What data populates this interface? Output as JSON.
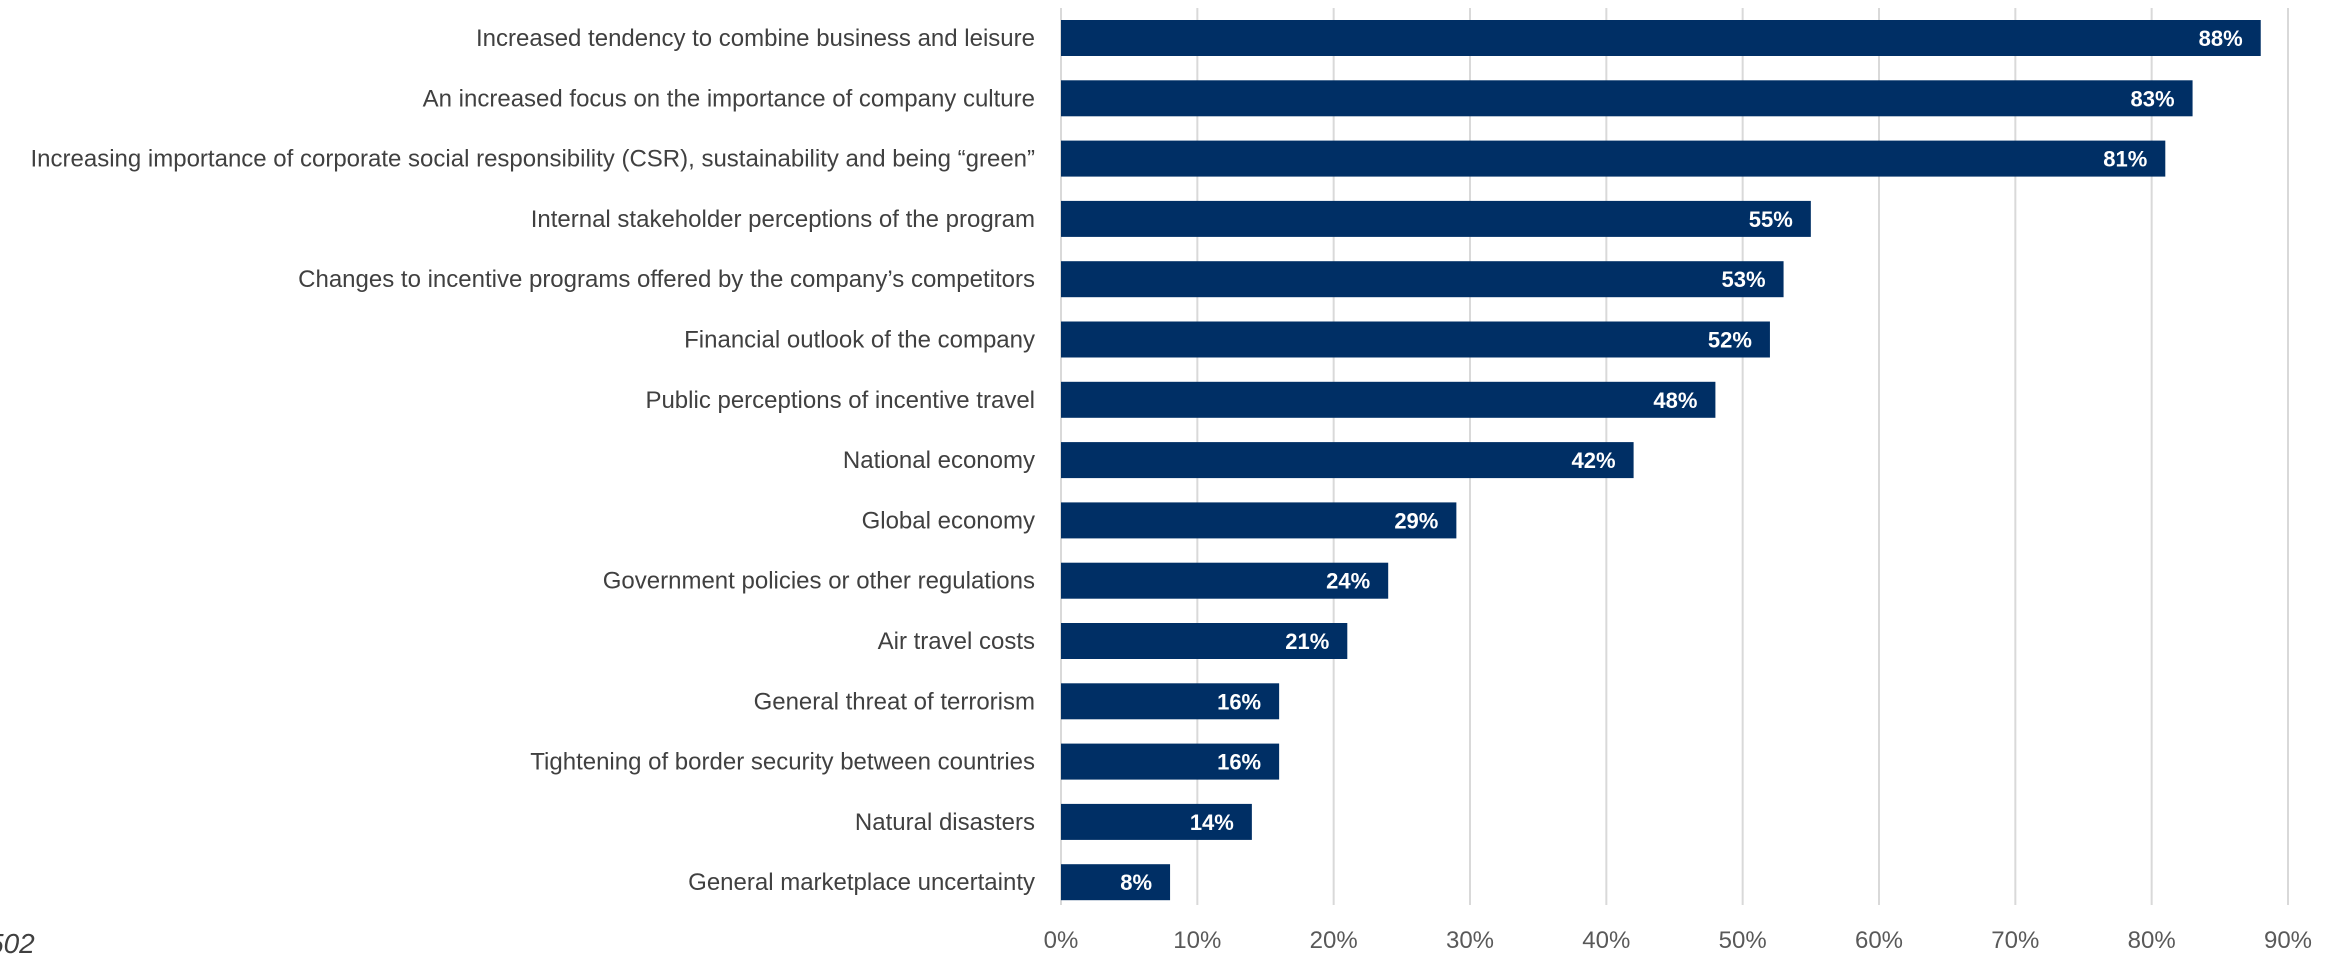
{
  "chart_data": {
    "type": "bar",
    "orientation": "horizontal",
    "categories": [
      "Increased tendency to combine business and leisure",
      "An increased focus on the importance of company culture",
      "Increasing importance of corporate social responsibility (CSR), sustainability and being “green”",
      "Internal stakeholder perceptions of the program",
      "Changes to incentive programs offered by the company’s competitors",
      "Financial outlook of the company",
      "Public perceptions of incentive travel",
      "National economy",
      "Global economy",
      "Government policies or other regulations",
      "Air travel costs",
      "General threat of terrorism",
      "Tightening of border security between countries",
      "Natural disasters",
      "General marketplace uncertainty"
    ],
    "values": [
      88,
      83,
      81,
      55,
      53,
      52,
      48,
      42,
      29,
      24,
      21,
      16,
      16,
      14,
      8
    ],
    "data_labels": [
      "88%",
      "83%",
      "81%",
      "55%",
      "53%",
      "52%",
      "48%",
      "42%",
      "29%",
      "24%",
      "21%",
      "16%",
      "16%",
      "14%",
      "8%"
    ],
    "xlim": [
      0,
      90
    ],
    "x_ticks": [
      "0%",
      "10%",
      "20%",
      "30%",
      "40%",
      "50%",
      "60%",
      "70%",
      "80%",
      "90%"
    ],
    "grid": true,
    "bar_color": "#002F65",
    "title": "",
    "xlabel": "",
    "ylabel": ""
  },
  "footnote": "502"
}
